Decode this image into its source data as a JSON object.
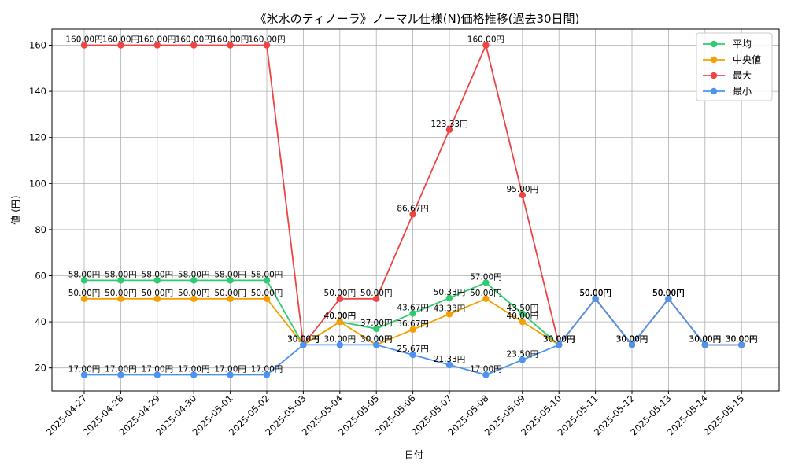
{
  "chart_data": {
    "type": "line",
    "title": "《氷水のティノーラ》ノーマル仕様(N)価格推移(過去30日間)",
    "xlabel": "日付",
    "ylabel": "値 (円)",
    "ylim": [
      10,
      167
    ],
    "yticks": [
      20,
      40,
      60,
      80,
      100,
      120,
      140,
      160
    ],
    "grid": true,
    "legend_position": "top-right",
    "value_suffix": "円",
    "categories": [
      "2025-04-27",
      "2025-04-28",
      "2025-04-29",
      "2025-04-30",
      "2025-05-01",
      "2025-05-02",
      "2025-05-03",
      "2025-05-04",
      "2025-05-05",
      "2025-05-06",
      "2025-05-07",
      "2025-05-08",
      "2025-05-09",
      "2025-05-10",
      "2025-05-11",
      "2025-05-12",
      "2025-05-13",
      "2025-05-14",
      "2025-05-15"
    ],
    "series": [
      {
        "name": "平均",
        "color": "#2ecc71",
        "values": [
          58.0,
          58.0,
          58.0,
          58.0,
          58.0,
          58.0,
          30.0,
          40.0,
          37.0,
          43.67,
          50.33,
          57.0,
          43.5,
          30.0,
          50.0,
          30.0,
          50.0,
          30.0,
          30.0
        ]
      },
      {
        "name": "中央値",
        "color": "#f5a000",
        "values": [
          50.0,
          50.0,
          50.0,
          50.0,
          50.0,
          50.0,
          30.0,
          40.0,
          30.0,
          36.67,
          43.33,
          50.0,
          40.0,
          30.0,
          50.0,
          30.0,
          50.0,
          30.0,
          30.0
        ]
      },
      {
        "name": "最大",
        "color": "#ef4444",
        "values": [
          160.0,
          160.0,
          160.0,
          160.0,
          160.0,
          160.0,
          30.0,
          50.0,
          50.0,
          86.67,
          123.33,
          160.0,
          95.0,
          30.0,
          50.0,
          30.0,
          50.0,
          30.0,
          30.0
        ]
      },
      {
        "name": "最小",
        "color": "#4d94f0",
        "values": [
          17.0,
          17.0,
          17.0,
          17.0,
          17.0,
          17.0,
          30.0,
          30.0,
          30.0,
          25.67,
          21.33,
          17.0,
          23.5,
          30.0,
          50.0,
          30.0,
          50.0,
          30.0,
          30.0
        ]
      }
    ]
  }
}
